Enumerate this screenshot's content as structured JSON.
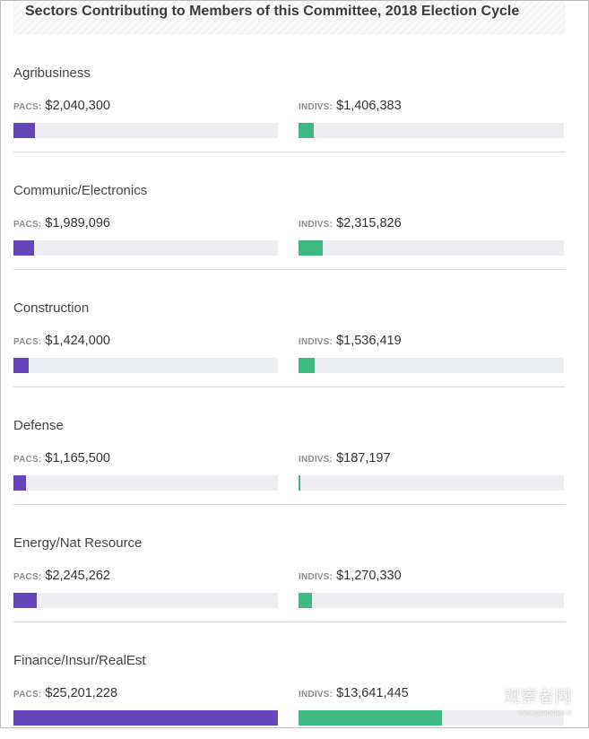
{
  "title": "Sectors Contributing to Members of this Committee, 2018 Election Cycle",
  "labels": {
    "pacs": "PACS:",
    "indivs": "INDIVS:"
  },
  "colors": {
    "pacs": "#6644bb",
    "indivs": "#3dba82",
    "track": "#eceef2"
  },
  "watermark": {
    "text": "观察者网",
    "sub": "www.guancha.cn"
  },
  "chart_data": {
    "type": "bar",
    "title": "Sectors Contributing to Members of this Committee, 2018 Election Cycle",
    "categories": [
      "Agribusiness",
      "Communic/Electronics",
      "Construction",
      "Defense",
      "Energy/Nat Resource",
      "Finance/Insur/RealEst"
    ],
    "series": [
      {
        "name": "PACS",
        "values": [
          2040300,
          1989096,
          1424000,
          1165500,
          2245262,
          25201228
        ],
        "display": [
          "$2,040,300",
          "$1,989,096",
          "$1,424,000",
          "$1,165,500",
          "$2,245,262",
          "$25,201,228"
        ]
      },
      {
        "name": "INDIVS",
        "values": [
          1406383,
          2315826,
          1536419,
          187197,
          1270330,
          13641445
        ],
        "display": [
          "$1,406,383",
          "$2,315,826",
          "$1,536,419",
          "$187,197",
          "$1,270,330",
          "$13,641,445"
        ]
      }
    ],
    "xmax": 25201228
  }
}
